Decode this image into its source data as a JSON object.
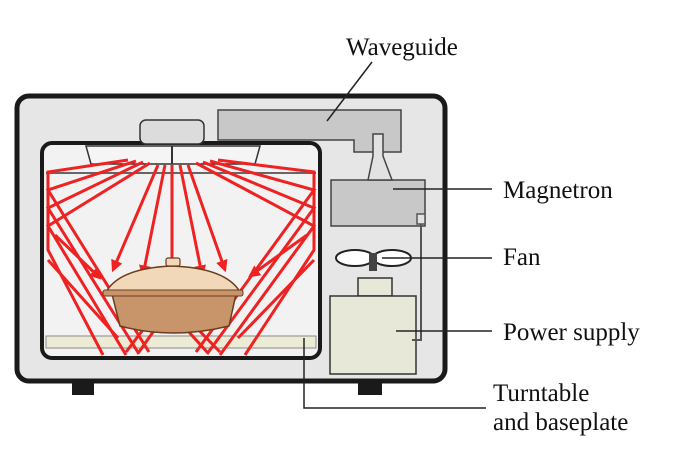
{
  "labels": {
    "waveguide": "Waveguide",
    "magnetron": "Magnetron",
    "fan": "Fan",
    "power_supply": "Power supply",
    "turntable_line1": "Turntable",
    "turntable_line2": "and baseplate"
  },
  "colors": {
    "case_fill": "#e6e6e6",
    "outline": "#1a1a1a",
    "cavity_fill": "#f2f2f2",
    "component_fill": "#c8c8c8",
    "power_fill": "#e8e8d8",
    "wave": "#ee2222",
    "dish_body": "#c8946a",
    "dish_lid": "#f0d8b8",
    "baseplate": "#ecebd6",
    "leader": "#222222"
  }
}
